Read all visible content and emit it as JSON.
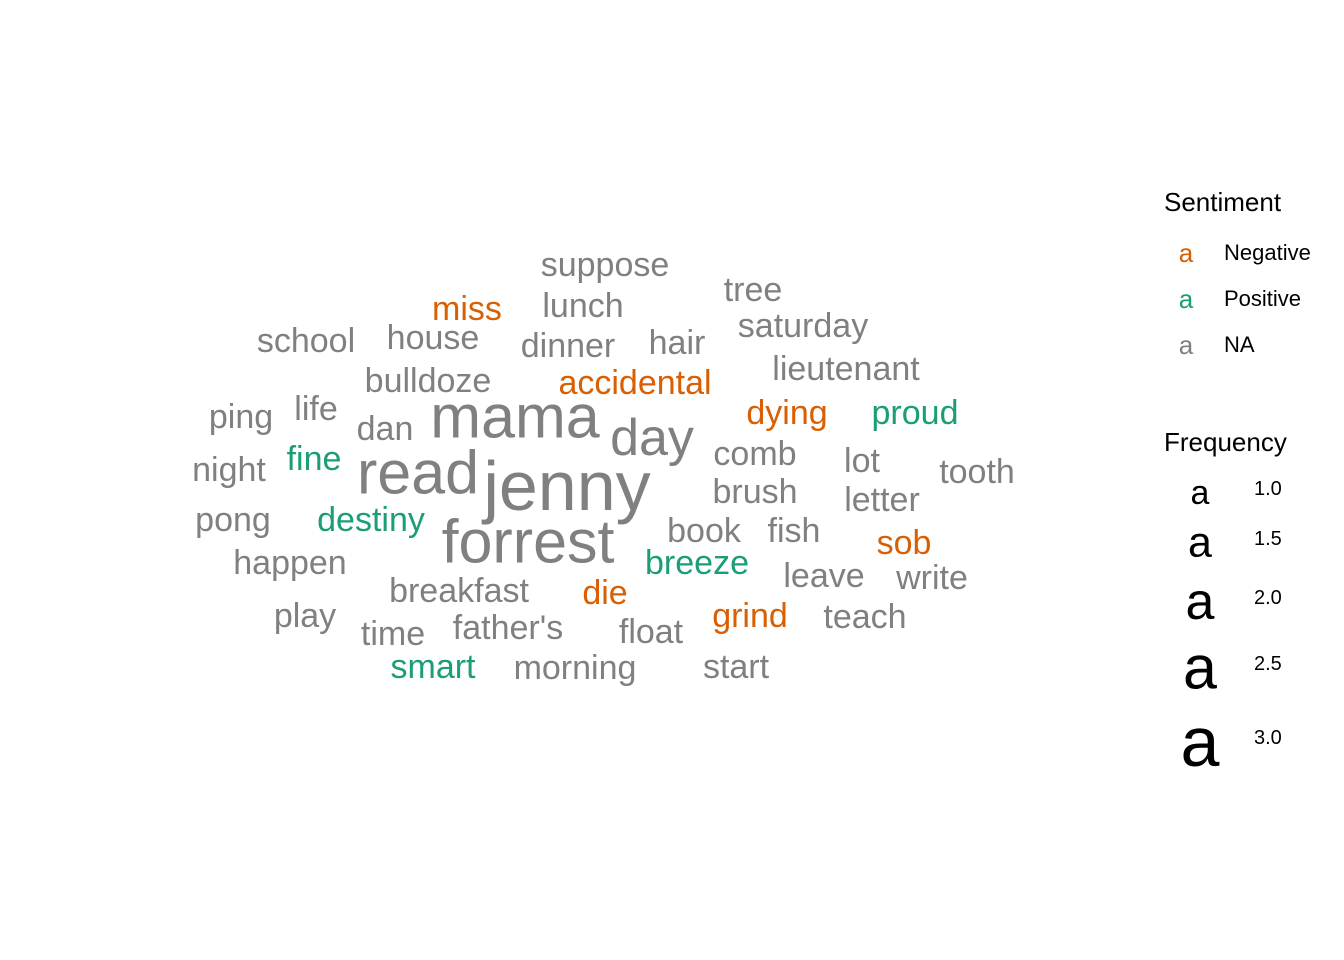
{
  "chart_data": {
    "type": "wordcloud",
    "legend": {
      "sentiment_title": "Sentiment",
      "sentiment_key_glyph": "a",
      "sentiment_items": [
        {
          "label": "Negative",
          "color": "#D95F02"
        },
        {
          "label": "Positive",
          "color": "#1B9E77"
        },
        {
          "label": "NA",
          "color": "#808080"
        }
      ],
      "frequency_title": "Frequency",
      "frequency_items": [
        "1.0",
        "1.5",
        "2.0",
        "2.5",
        "3.0"
      ]
    },
    "words": [
      {
        "text": "jenny",
        "freq": 3,
        "sentiment": "NA"
      },
      {
        "text": "read",
        "freq": 2.5,
        "sentiment": "NA"
      },
      {
        "text": "forrest",
        "freq": 2.5,
        "sentiment": "NA"
      },
      {
        "text": "mama",
        "freq": 2.5,
        "sentiment": "NA"
      },
      {
        "text": "day",
        "freq": 2,
        "sentiment": "NA"
      },
      {
        "text": "suppose",
        "freq": 1,
        "sentiment": "NA"
      },
      {
        "text": "miss",
        "freq": 1,
        "sentiment": "Negative"
      },
      {
        "text": "lunch",
        "freq": 1,
        "sentiment": "NA"
      },
      {
        "text": "tree",
        "freq": 1,
        "sentiment": "NA"
      },
      {
        "text": "school",
        "freq": 1,
        "sentiment": "NA"
      },
      {
        "text": "house",
        "freq": 1,
        "sentiment": "NA"
      },
      {
        "text": "dinner",
        "freq": 1,
        "sentiment": "NA"
      },
      {
        "text": "hair",
        "freq": 1,
        "sentiment": "NA"
      },
      {
        "text": "saturday",
        "freq": 1,
        "sentiment": "NA"
      },
      {
        "text": "bulldoze",
        "freq": 1,
        "sentiment": "NA"
      },
      {
        "text": "accidental",
        "freq": 1,
        "sentiment": "Negative"
      },
      {
        "text": "lieutenant",
        "freq": 1,
        "sentiment": "NA"
      },
      {
        "text": "ping",
        "freq": 1,
        "sentiment": "NA"
      },
      {
        "text": "life",
        "freq": 1,
        "sentiment": "NA"
      },
      {
        "text": "dan",
        "freq": 1,
        "sentiment": "NA"
      },
      {
        "text": "dying",
        "freq": 1,
        "sentiment": "Negative"
      },
      {
        "text": "proud",
        "freq": 1,
        "sentiment": "Positive"
      },
      {
        "text": "night",
        "freq": 1,
        "sentiment": "NA"
      },
      {
        "text": "fine",
        "freq": 1,
        "sentiment": "Positive"
      },
      {
        "text": "comb",
        "freq": 1,
        "sentiment": "NA"
      },
      {
        "text": "lot",
        "freq": 1,
        "sentiment": "NA"
      },
      {
        "text": "tooth",
        "freq": 1,
        "sentiment": "NA"
      },
      {
        "text": "brush",
        "freq": 1,
        "sentiment": "NA"
      },
      {
        "text": "letter",
        "freq": 1,
        "sentiment": "NA"
      },
      {
        "text": "pong",
        "freq": 1,
        "sentiment": "NA"
      },
      {
        "text": "destiny",
        "freq": 1,
        "sentiment": "Positive"
      },
      {
        "text": "book",
        "freq": 1,
        "sentiment": "NA"
      },
      {
        "text": "fish",
        "freq": 1,
        "sentiment": "NA"
      },
      {
        "text": "sob",
        "freq": 1,
        "sentiment": "Negative"
      },
      {
        "text": "happen",
        "freq": 1,
        "sentiment": "NA"
      },
      {
        "text": "breeze",
        "freq": 1,
        "sentiment": "Positive"
      },
      {
        "text": "leave",
        "freq": 1,
        "sentiment": "NA"
      },
      {
        "text": "write",
        "freq": 1,
        "sentiment": "NA"
      },
      {
        "text": "breakfast",
        "freq": 1,
        "sentiment": "NA"
      },
      {
        "text": "die",
        "freq": 1,
        "sentiment": "Negative"
      },
      {
        "text": "play",
        "freq": 1,
        "sentiment": "NA"
      },
      {
        "text": "grind",
        "freq": 1,
        "sentiment": "Negative"
      },
      {
        "text": "teach",
        "freq": 1,
        "sentiment": "NA"
      },
      {
        "text": "time",
        "freq": 1,
        "sentiment": "NA"
      },
      {
        "text": "father's",
        "freq": 1,
        "sentiment": "NA"
      },
      {
        "text": "float",
        "freq": 1,
        "sentiment": "NA"
      },
      {
        "text": "smart",
        "freq": 1,
        "sentiment": "Positive"
      },
      {
        "text": "morning",
        "freq": 1,
        "sentiment": "NA"
      },
      {
        "text": "start",
        "freq": 1,
        "sentiment": "NA"
      }
    ]
  }
}
